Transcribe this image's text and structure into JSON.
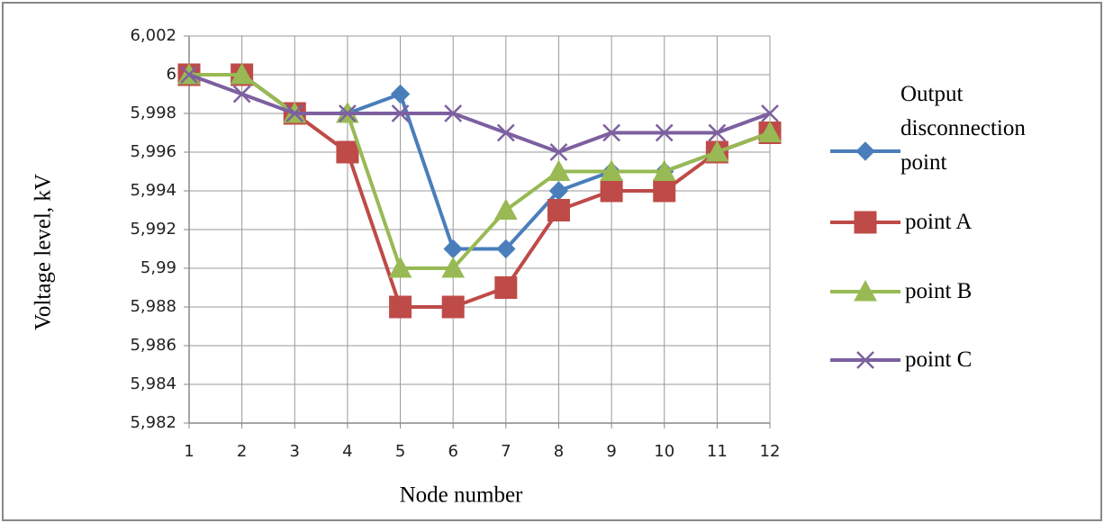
{
  "chart_data": {
    "type": "line",
    "x_label": "Node number",
    "y_label": "Voltage level, kV",
    "x": [
      1,
      2,
      3,
      4,
      5,
      6,
      7,
      8,
      9,
      10,
      11,
      12
    ],
    "xlim": [
      1,
      12
    ],
    "xticks": [
      1,
      2,
      3,
      4,
      5,
      6,
      7,
      8,
      9,
      10,
      11,
      12
    ],
    "ylim": [
      5.982,
      6.002
    ],
    "yticks": [
      {
        "value": 5.982,
        "label": "5,982"
      },
      {
        "value": 5.984,
        "label": "5,984"
      },
      {
        "value": 5.986,
        "label": "5,986"
      },
      {
        "value": 5.988,
        "label": "5,988"
      },
      {
        "value": 5.99,
        "label": "5,99"
      },
      {
        "value": 5.992,
        "label": "5,992"
      },
      {
        "value": 5.994,
        "label": "5,994"
      },
      {
        "value": 5.996,
        "label": "5,996"
      },
      {
        "value": 5.998,
        "label": "5,998"
      },
      6,
      {
        "value": 6.002,
        "label": "6,002"
      }
    ],
    "grid": true,
    "legend": "right",
    "series": [
      {
        "name": "Output disconnection point",
        "color": "#4a7ebb",
        "marker": "diamond",
        "values": [
          6,
          6,
          5.998,
          5.998,
          5.999,
          5.991,
          5.991,
          5.994,
          5.995,
          5.995,
          5.996,
          5.997
        ]
      },
      {
        "name": "point A",
        "color": "#be4b48",
        "marker": "square",
        "values": [
          6,
          6,
          5.998,
          5.996,
          5.988,
          5.988,
          5.989,
          5.993,
          5.994,
          5.994,
          5.996,
          5.997
        ]
      },
      {
        "name": "point B",
        "color": "#98b954",
        "marker": "triangle",
        "values": [
          6,
          6,
          5.998,
          5.998,
          5.99,
          5.99,
          5.993,
          5.995,
          5.995,
          5.995,
          5.996,
          5.997
        ]
      },
      {
        "name": "point C",
        "color": "#7d60a0",
        "marker": "cross",
        "values": [
          6,
          5.999,
          5.998,
          5.998,
          5.998,
          5.998,
          5.997,
          5.996,
          5.997,
          5.997,
          5.997,
          5.998
        ]
      }
    ]
  }
}
